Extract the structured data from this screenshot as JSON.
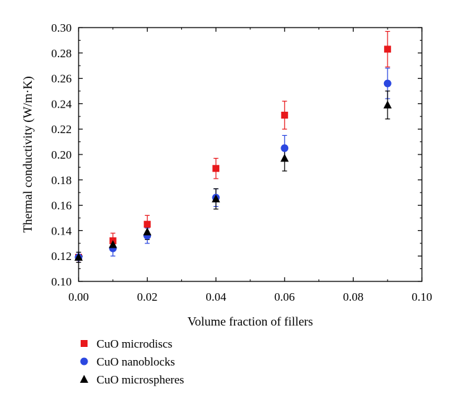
{
  "chart_data": {
    "type": "scatter",
    "title": "",
    "xlabel": "Volume fraction of fillers",
    "ylabel": "Thermal conductivity (W/m·K)",
    "xlim": [
      0.0,
      0.1
    ],
    "ylim": [
      0.1,
      0.3
    ],
    "x_ticks": [
      "0.00",
      "0.02",
      "0.04",
      "0.06",
      "0.08",
      "0.10"
    ],
    "y_ticks": [
      "0.10",
      "0.12",
      "0.14",
      "0.16",
      "0.18",
      "0.20",
      "0.22",
      "0.24",
      "0.26",
      "0.28",
      "0.30"
    ],
    "x_tick_values": [
      0.0,
      0.02,
      0.04,
      0.06,
      0.08,
      0.1
    ],
    "y_tick_values": [
      0.1,
      0.12,
      0.14,
      0.16,
      0.18,
      0.2,
      0.22,
      0.24,
      0.26,
      0.28,
      0.3
    ],
    "legend_position": "bottom-left",
    "series": [
      {
        "name": "CuO microdiscs",
        "marker": "square",
        "color": "#e8191c",
        "x": [
          0.0,
          0.01,
          0.02,
          0.04,
          0.06,
          0.09
        ],
        "y": [
          0.119,
          0.132,
          0.145,
          0.189,
          0.231,
          0.283
        ],
        "err": [
          0.004,
          0.006,
          0.007,
          0.008,
          0.011,
          0.014
        ]
      },
      {
        "name": "CuO nanoblocks",
        "marker": "circle",
        "color": "#2b47e0",
        "x": [
          0.0,
          0.01,
          0.02,
          0.04,
          0.06,
          0.09
        ],
        "y": [
          0.119,
          0.126,
          0.136,
          0.166,
          0.205,
          0.256
        ],
        "err": [
          0.004,
          0.006,
          0.006,
          0.007,
          0.01,
          0.012
        ]
      },
      {
        "name": "CuO microspheres",
        "marker": "triangle",
        "color": "#000000",
        "x": [
          0.0,
          0.01,
          0.02,
          0.04,
          0.06,
          0.09
        ],
        "y": [
          0.119,
          0.129,
          0.139,
          0.165,
          0.197,
          0.239
        ],
        "err": [
          0.004,
          0.005,
          0.006,
          0.008,
          0.01,
          0.011
        ]
      }
    ]
  }
}
